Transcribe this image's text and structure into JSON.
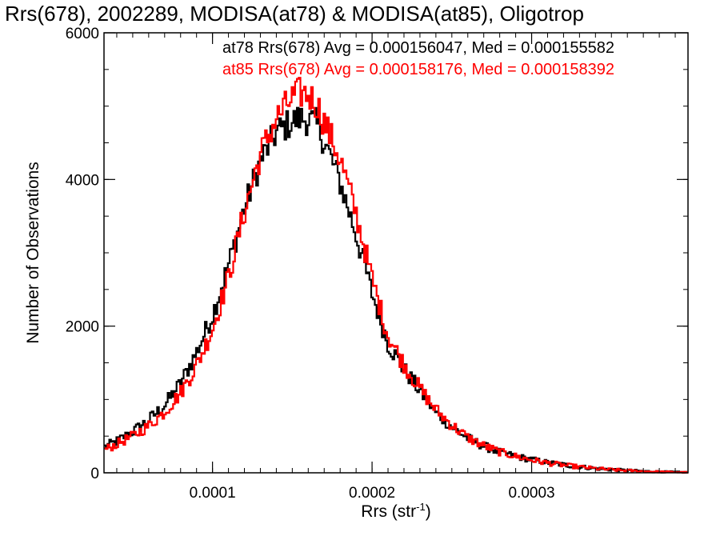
{
  "chart_data": {
    "type": "line",
    "title": "Rrs(678), 2002289, MODISA(at78) & MODISA(at85), Oligotrop",
    "xlabel": "Rrs (str",
    "xlabel_exponent": "-1",
    "xlabel_close": ")",
    "ylabel": "Number of Observations",
    "xlim": [
      3.2e-05,
      0.000398
    ],
    "ylim": [
      0,
      6000
    ],
    "x_ticks": [
      0.0001,
      0.0002,
      0.0003
    ],
    "x_tick_labels": [
      "0.0001",
      "0.0002",
      "0.0003"
    ],
    "y_ticks": [
      0,
      2000,
      4000,
      6000
    ],
    "y_tick_labels": [
      "0",
      "2000",
      "4000",
      "6000"
    ],
    "step": "histogram",
    "grid": false,
    "legend_position": "top-right",
    "series": [
      {
        "name": "at78",
        "legend": "at78 Rrs(678) Avg = 0.000156047, Med = 0.000155582",
        "color": "#000000",
        "x": [
          3.2e-05,
          4e-05,
          5e-05,
          6e-05,
          7e-05,
          8e-05,
          9e-05,
          0.0001,
          0.00011,
          0.00012,
          0.00013,
          0.00014,
          0.00015,
          0.000155,
          0.00016,
          0.000165,
          0.00017,
          0.00018,
          0.00019,
          0.0002,
          0.00021,
          0.00022,
          0.00023,
          0.00024,
          0.00025,
          0.00026,
          0.00027,
          0.00028,
          0.00029,
          0.0003,
          0.00031,
          0.00032,
          0.00033,
          0.00034,
          0.00035,
          0.00036,
          0.00037,
          0.00038,
          0.00039,
          0.000398
        ],
        "y": [
          350,
          430,
          560,
          720,
          920,
          1220,
          1640,
          2150,
          2830,
          3600,
          4250,
          4640,
          4790,
          4830,
          4820,
          4750,
          4530,
          3960,
          3250,
          2450,
          1760,
          1410,
          1120,
          820,
          630,
          470,
          365,
          280,
          225,
          180,
          140,
          110,
          82,
          60,
          44,
          32,
          22,
          15,
          10,
          6
        ]
      },
      {
        "name": "at85",
        "legend": "at85 Rrs(678) Avg = 0.000158176, Med = 0.000158392",
        "color": "#ff0000",
        "x": [
          3.2e-05,
          4e-05,
          5e-05,
          6e-05,
          7e-05,
          8e-05,
          9e-05,
          0.0001,
          0.00011,
          0.00012,
          0.00013,
          0.00014,
          0.00015,
          0.000155,
          0.00016,
          0.000165,
          0.00017,
          0.00018,
          0.00019,
          0.0002,
          0.00021,
          0.00022,
          0.00023,
          0.00024,
          0.00025,
          0.00026,
          0.00027,
          0.00028,
          0.00029,
          0.0003,
          0.00031,
          0.00032,
          0.00033,
          0.00034,
          0.00035,
          0.00036,
          0.00037,
          0.00038,
          0.00039,
          0.000398
        ],
        "y": [
          310,
          390,
          500,
          640,
          830,
          1090,
          1460,
          1960,
          2660,
          3560,
          4340,
          4830,
          5110,
          5180,
          5160,
          5040,
          4790,
          4280,
          3530,
          2650,
          1870,
          1480,
          1150,
          860,
          650,
          480,
          370,
          285,
          225,
          175,
          135,
          105,
          80,
          58,
          42,
          30,
          21,
          14,
          9,
          5
        ]
      }
    ]
  }
}
